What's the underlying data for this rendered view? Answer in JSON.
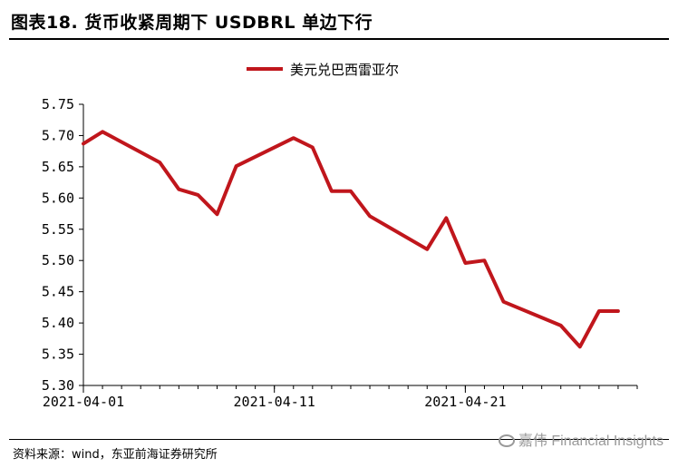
{
  "header": {
    "title": "图表18. 货币收紧周期下 USDBRL 单边下行"
  },
  "footer": {
    "source": "资料来源：wind，东亚前海证券研究所"
  },
  "watermark": {
    "text": "嘉伟 Financial Insights"
  },
  "colors": {
    "series": "#c0161c",
    "axis": "#000000"
  },
  "chart_data": {
    "type": "line",
    "title": "",
    "xlabel": "",
    "ylabel": "",
    "ylim": [
      5.3,
      5.75
    ],
    "yticks": [
      5.3,
      5.35,
      5.4,
      5.45,
      5.5,
      5.55,
      5.6,
      5.65,
      5.7,
      5.75
    ],
    "ytick_labels": [
      "5.30",
      "5.35",
      "5.40",
      "5.45",
      "5.50",
      "5.55",
      "5.60",
      "5.65",
      "5.70",
      "5.75"
    ],
    "xlim": [
      "2021-04-01",
      "2021-04-30"
    ],
    "xticks": [
      "2021-04-01",
      "2021-04-11",
      "2021-04-21"
    ],
    "xtick_labels": [
      "2021-04-01",
      "2021-04-11",
      "2021-04-21"
    ],
    "grid": false,
    "legend_position": "top-center",
    "series": [
      {
        "name": "美元兑巴西雷亚尔",
        "x": [
          "2021-04-01",
          "2021-04-02",
          "2021-04-05",
          "2021-04-06",
          "2021-04-07",
          "2021-04-08",
          "2021-04-09",
          "2021-04-12",
          "2021-04-13",
          "2021-04-14",
          "2021-04-15",
          "2021-04-16",
          "2021-04-19",
          "2021-04-20",
          "2021-04-21",
          "2021-04-22",
          "2021-04-23",
          "2021-04-26",
          "2021-04-27",
          "2021-04-28",
          "2021-04-29"
        ],
        "values": [
          5.687,
          5.706,
          5.657,
          5.614,
          5.605,
          5.574,
          5.651,
          5.696,
          5.681,
          5.611,
          5.611,
          5.571,
          5.518,
          5.568,
          5.496,
          5.5,
          5.434,
          5.396,
          5.362,
          5.419,
          5.419
        ]
      }
    ]
  }
}
